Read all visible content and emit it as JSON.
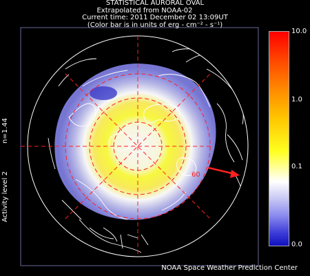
{
  "header": {
    "title": "STATISTICAL AURORAL OVAL",
    "source": "Extrapolated from NOAA-02",
    "time": "Current time: 2011 December 02 13:09UT",
    "units": "(Color bar is in units of erg - cm⁻² - s⁻¹)"
  },
  "side_labels": {
    "n": "n=1.44",
    "activity": "Activity level 2"
  },
  "colorbar": {
    "labels": [
      "10.0",
      "1.0",
      "0.1",
      "0.0"
    ],
    "scale": "log",
    "colors": {
      "max": "#ff0000",
      "mid": "#ffff20",
      "white": "#ffffff",
      "min": "#1010c0"
    }
  },
  "map": {
    "latitude_label": "60",
    "grid_color": "#ff2020",
    "coastline_color": "#ffffff",
    "arrow_color": "#ff2020"
  },
  "footer": {
    "credit": "NOAA Space Weather Prediction Center"
  }
}
